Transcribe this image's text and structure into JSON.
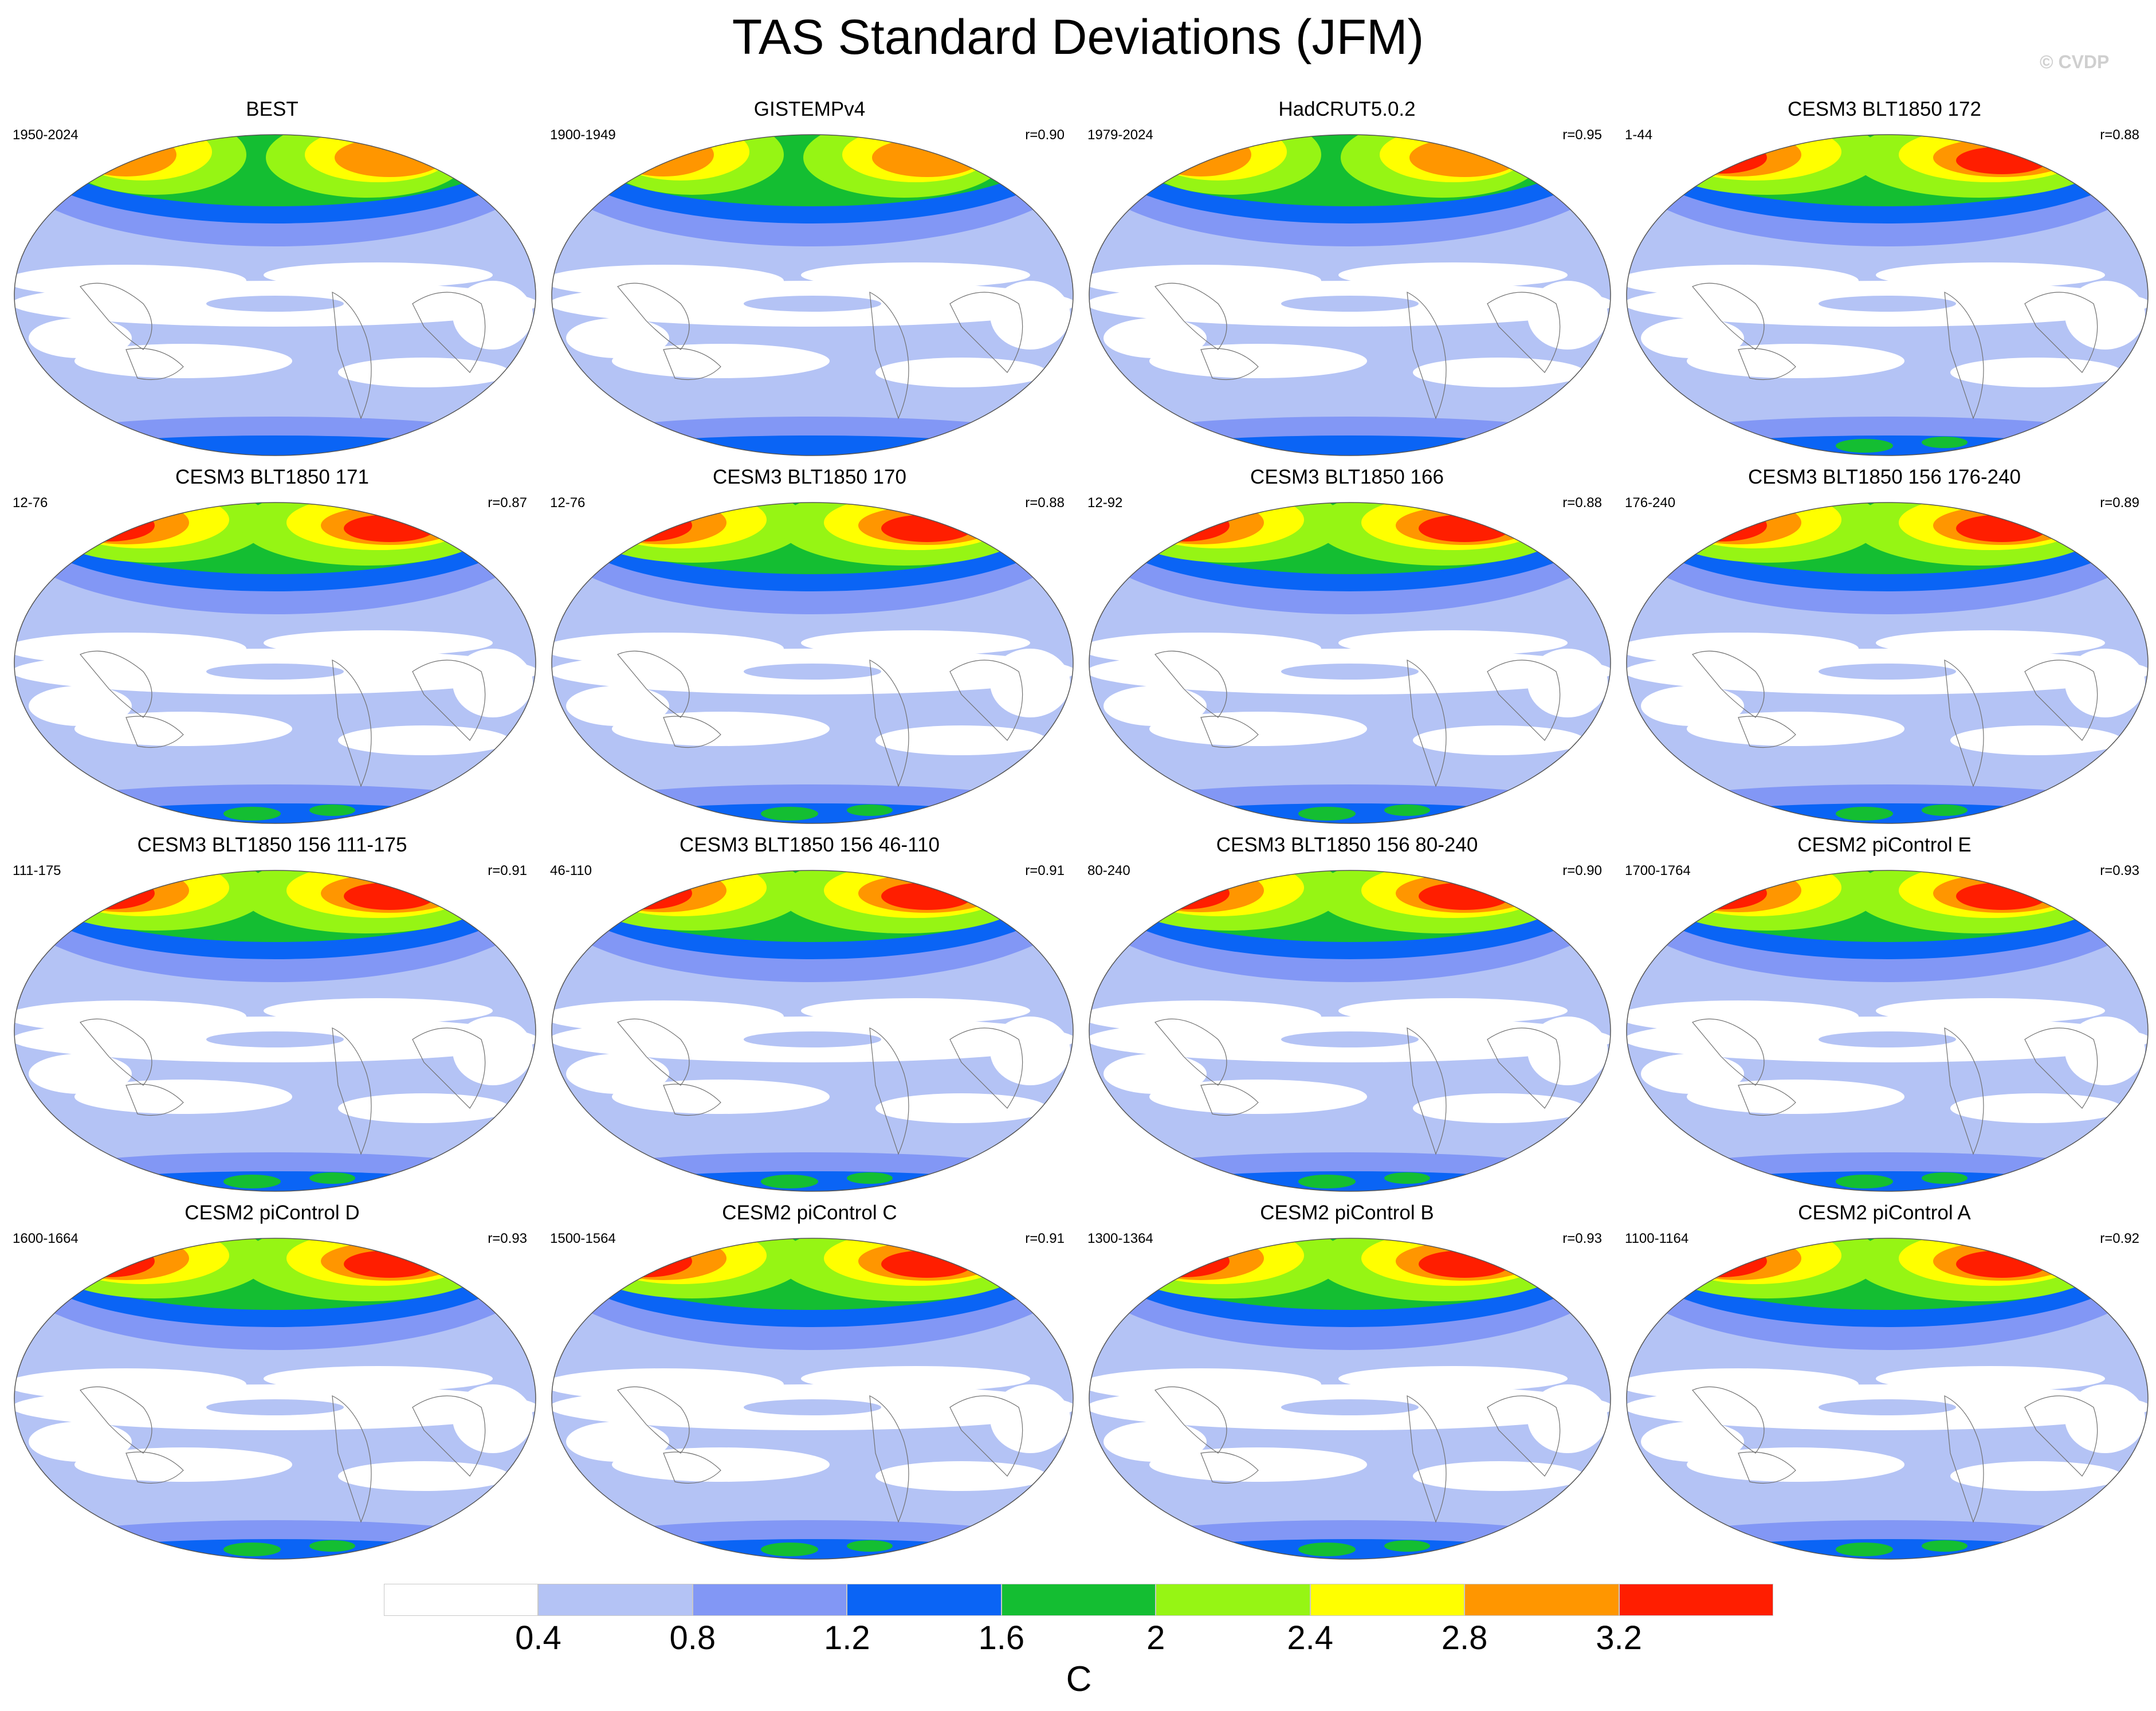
{
  "title": "TAS Standard Deviations (JFM)",
  "watermark": "© CVDP",
  "panels": [
    {
      "title": "BEST",
      "period": "1950-2024",
      "r": ""
    },
    {
      "title": "GISTEMPv4",
      "period": "1900-1949",
      "r": "r=0.90"
    },
    {
      "title": "HadCRUT5.0.2",
      "period": "1979-2024",
      "r": "r=0.95"
    },
    {
      "title": "CESM3 BLT1850 172",
      "period": "1-44",
      "r": "r=0.88"
    },
    {
      "title": "CESM3 BLT1850 171",
      "period": "12-76",
      "r": "r=0.87"
    },
    {
      "title": "CESM3 BLT1850 170",
      "period": "12-76",
      "r": "r=0.88"
    },
    {
      "title": "CESM3 BLT1850 166",
      "period": "12-92",
      "r": "r=0.88"
    },
    {
      "title": "CESM3 BLT1850 156 176-240",
      "period": "176-240",
      "r": "r=0.89"
    },
    {
      "title": "CESM3 BLT1850 156 111-175",
      "period": "111-175",
      "r": "r=0.91"
    },
    {
      "title": "CESM3 BLT1850 156 46-110",
      "period": "46-110",
      "r": "r=0.91"
    },
    {
      "title": "CESM3 BLT1850 156 80-240",
      "period": "80-240",
      "r": "r=0.90"
    },
    {
      "title": "CESM2 piControl E",
      "period": "1700-1764",
      "r": "r=0.93"
    },
    {
      "title": "CESM2 piControl D",
      "period": "1600-1664",
      "r": "r=0.93"
    },
    {
      "title": "CESM2 piControl C",
      "period": "1500-1564",
      "r": "r=0.91"
    },
    {
      "title": "CESM2 piControl B",
      "period": "1300-1364",
      "r": "r=0.93"
    },
    {
      "title": "CESM2 piControl A",
      "period": "1100-1164",
      "r": "r=0.92"
    }
  ],
  "colorbar": {
    "colors": [
      "#ffffff",
      "#b4c3f5",
      "#8297f5",
      "#0a64f5",
      "#14be32",
      "#96f514",
      "#ffff00",
      "#ff9600",
      "#ff1e00"
    ],
    "ticks": [
      "0.4",
      "0.8",
      "1.2",
      "1.6",
      "2",
      "2.4",
      "2.8",
      "3.2"
    ],
    "unit": "C"
  }
}
